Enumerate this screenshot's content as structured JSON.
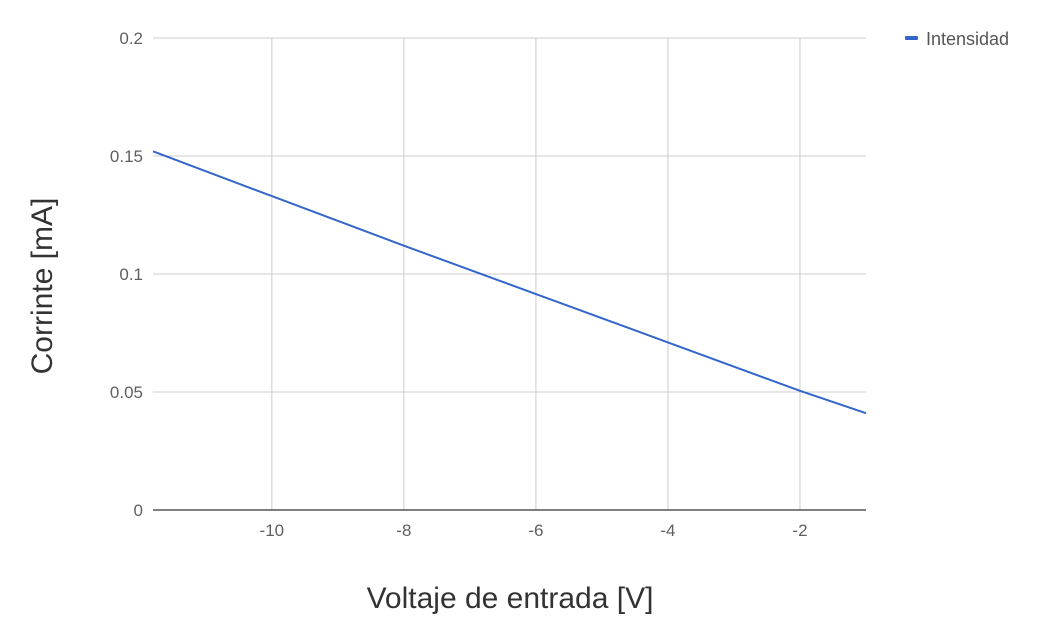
{
  "chart_data": {
    "type": "line",
    "title": "",
    "xlabel": "Voltaje de entrada [V]",
    "ylabel": "Corrinte [mA]",
    "xlim": [
      -11.8,
      -1.0
    ],
    "ylim": [
      0,
      0.2
    ],
    "x_ticks": [
      -10,
      -8,
      -6,
      -4,
      -2
    ],
    "x_tick_labels": [
      "-10",
      "-8",
      "-6",
      "-4",
      "-2"
    ],
    "y_ticks": [
      0,
      0.05,
      0.1,
      0.15,
      0.2
    ],
    "y_tick_labels": [
      "0",
      "0.05",
      "0.1",
      "0.15",
      "0.2"
    ],
    "grid": true,
    "legend_position": "top-right",
    "series": [
      {
        "name": "Intensidad",
        "color": "#3366cc",
        "x": [
          -11.8,
          -10,
          -8,
          -6,
          -4,
          -2,
          -1.0
        ],
        "y": [
          0.152,
          0.133,
          0.112,
          0.0915,
          0.071,
          0.0505,
          0.041
        ]
      }
    ]
  }
}
